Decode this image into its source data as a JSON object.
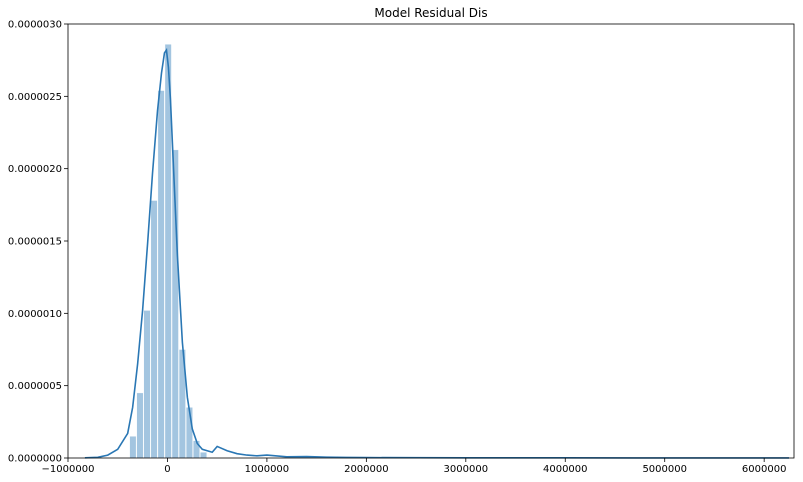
{
  "chart_data": {
    "type": "bar",
    "title": "Model Residual Dis",
    "xlabel": "",
    "ylabel": "",
    "xlim": [
      -1000000,
      6300000
    ],
    "ylim": [
      0,
      3e-06
    ],
    "grid": false,
    "x_ticks": [
      -1000000,
      0,
      1000000,
      2000000,
      3000000,
      4000000,
      5000000,
      6000000
    ],
    "x_tick_labels": [
      "−1000000",
      "0",
      "1000000",
      "2000000",
      "3000000",
      "4000000",
      "5000000",
      "6000000"
    ],
    "y_ticks": [
      0,
      5e-07,
      1e-06,
      1.5e-06,
      2e-06,
      2.5e-06,
      3e-06
    ],
    "y_tick_labels": [
      "0.0000000",
      "0.0000005",
      "0.0000010",
      "0.0000015",
      "0.0000020",
      "0.0000025",
      "0.0000030"
    ],
    "histogram": {
      "bin_width": 71000,
      "bin_starts": [
        -380000,
        -309000,
        -238000,
        -167000,
        -96000,
        -25000,
        46000,
        117000,
        188000,
        259000,
        330000
      ],
      "density": [
        1.5e-07,
        4.5e-07,
        1.02e-06,
        1.78e-06,
        2.54e-06,
        2.86e-06,
        2.13e-06,
        7.5e-07,
        3.5e-07,
        1.2e-07,
        4e-08
      ],
      "color": "#a3c5e0"
    },
    "kde": {
      "color": "#2a77b4",
      "x": [
        -830000,
        -700000,
        -600000,
        -500000,
        -400000,
        -350000,
        -300000,
        -250000,
        -200000,
        -150000,
        -100000,
        -60000,
        -30000,
        -10000,
        10000,
        30000,
        60000,
        100000,
        150000,
        200000,
        250000,
        300000,
        350000,
        400000,
        450000,
        500000,
        600000,
        700000,
        800000,
        900000,
        1000000,
        1200000,
        1400000,
        1600000,
        1800000,
        2000000,
        2500000,
        3000000,
        4000000,
        5000000,
        6250000
      ],
      "y": [
        1e-09,
        5e-09,
        2e-08,
        6e-08,
        1.7e-07,
        3.5e-07,
        6.5e-07,
        1.02e-06,
        1.48e-06,
        1.97e-06,
        2.4e-06,
        2.66e-06,
        2.8e-06,
        2.82e-06,
        2.7e-06,
        2.48e-06,
        2.02e-06,
        1.4e-06,
        8e-07,
        4.2e-07,
        2e-07,
        1e-07,
        6e-08,
        5e-08,
        4e-08,
        8e-08,
        5e-08,
        3e-08,
        2e-08,
        1.5e-08,
        2e-08,
        8e-09,
        1e-08,
        6e-09,
        4e-09,
        3e-09,
        2e-09,
        1e-09,
        1e-09,
        5e-10,
        5e-10
      ]
    }
  }
}
